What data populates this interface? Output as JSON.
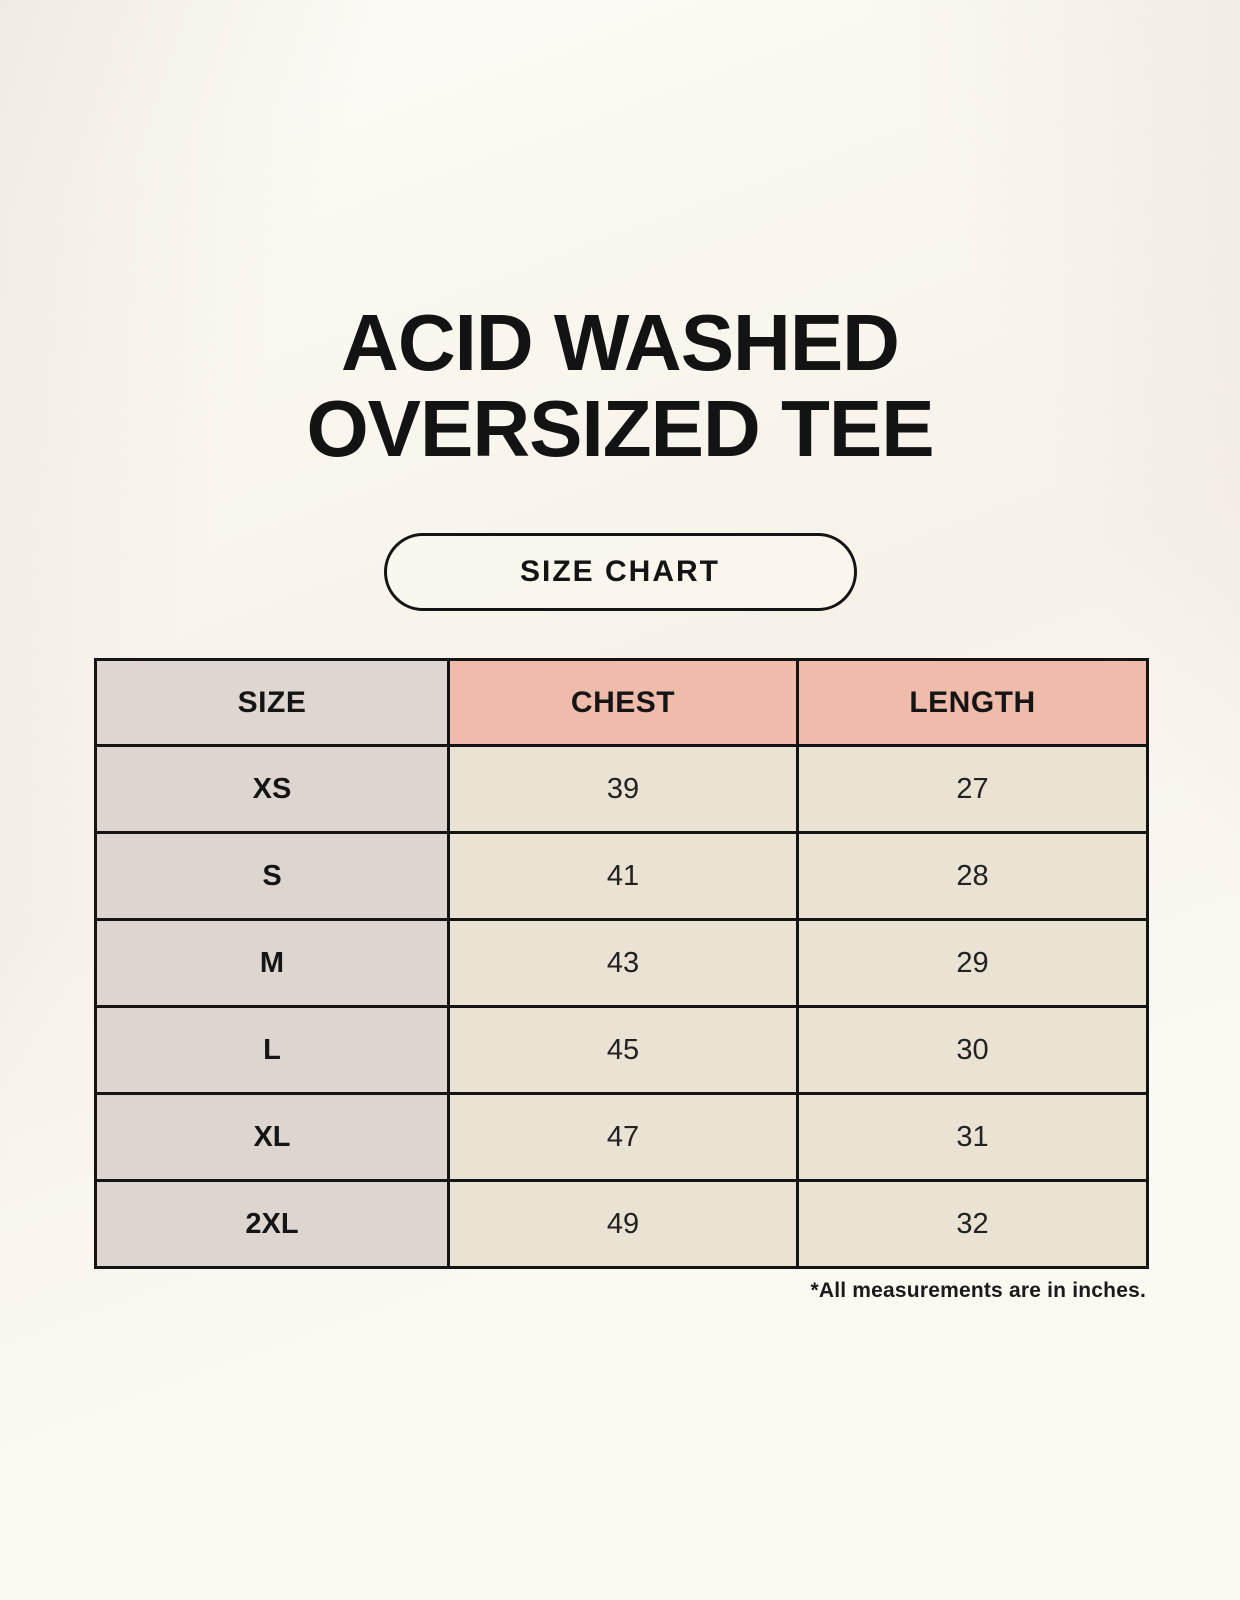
{
  "header": {
    "title_lines": [
      "ACID WASHED",
      "OVERSIZED TEE"
    ]
  },
  "size_chart_button": {
    "label": "SIZE CHART"
  },
  "table": {
    "columns": [
      "SIZE",
      "CHEST",
      "LENGTH"
    ],
    "rows": [
      {
        "size": "XS",
        "chest": "39",
        "length": "27"
      },
      {
        "size": "S",
        "chest": "41",
        "length": "28"
      },
      {
        "size": "M",
        "chest": "43",
        "length": "29"
      },
      {
        "size": "L",
        "chest": "45",
        "length": "30"
      },
      {
        "size": "XL",
        "chest": "47",
        "length": "31"
      },
      {
        "size": "2XL",
        "chest": "49",
        "length": "32"
      }
    ]
  },
  "footnote": "*All measurements are in inches.",
  "colors": {
    "background": "#f9f5ec",
    "header_size_bg": "#ded7d1",
    "header_measure_bg": "#efbcab",
    "size_column_bg": "#ddd6d0",
    "value_cell_bg": "#eae3d4",
    "border": "#141414",
    "text": "#151515"
  },
  "chart_data": {
    "type": "table",
    "title": "ACID WASHED OVERSIZED TEE",
    "subtitle": "SIZE CHART",
    "columns": [
      "SIZE",
      "CHEST",
      "LENGTH"
    ],
    "units": "inches",
    "rows": [
      [
        "XS",
        39,
        27
      ],
      [
        "S",
        41,
        28
      ],
      [
        "M",
        43,
        29
      ],
      [
        "L",
        45,
        30
      ],
      [
        "XL",
        47,
        31
      ],
      [
        "2XL",
        49,
        32
      ]
    ],
    "note": "*All measurements are in inches."
  }
}
